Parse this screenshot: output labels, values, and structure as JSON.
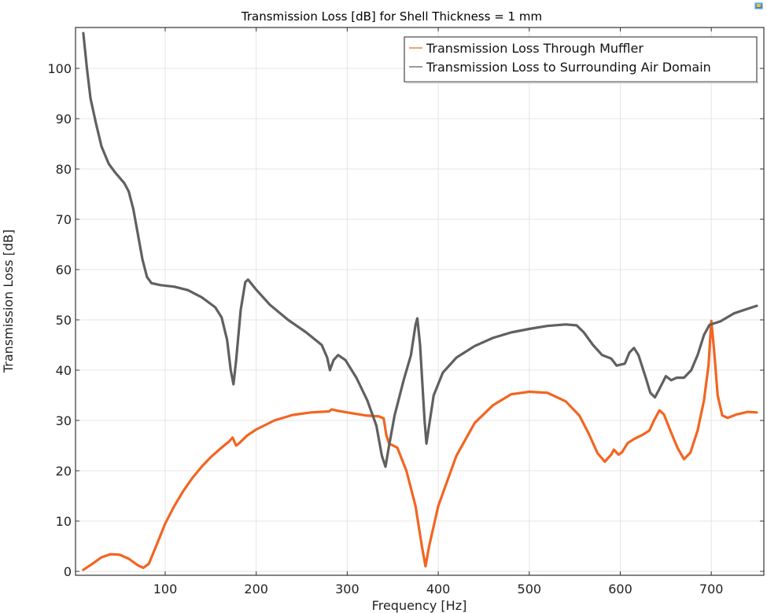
{
  "chart_data": {
    "type": "line",
    "title": "Transmission Loss [dB] for Shell Thickness = 1 mm",
    "xlabel": "Frequency [Hz]",
    "ylabel": "Transmission Loss [dB]",
    "xlim": [
      3,
      757
    ],
    "ylim": [
      -1,
      108
    ],
    "x_ticks": [
      100,
      200,
      300,
      400,
      500,
      600,
      700
    ],
    "y_ticks": [
      0,
      10,
      20,
      30,
      40,
      50,
      60,
      70,
      80,
      90,
      100
    ],
    "grid": true,
    "legend_position": "upper right",
    "series": [
      {
        "name": "Transmission Loss Through Muffler",
        "color": "#f26522",
        "points": [
          [
            10,
            0.3
          ],
          [
            20,
            1.5
          ],
          [
            30,
            2.8
          ],
          [
            40,
            3.4
          ],
          [
            50,
            3.3
          ],
          [
            60,
            2.5
          ],
          [
            70,
            1.2
          ],
          [
            76,
            0.7
          ],
          [
            82,
            1.5
          ],
          [
            90,
            5
          ],
          [
            100,
            9.5
          ],
          [
            110,
            13
          ],
          [
            120,
            16
          ],
          [
            130,
            18.6
          ],
          [
            140,
            20.8
          ],
          [
            150,
            22.7
          ],
          [
            160,
            24.3
          ],
          [
            170,
            25.8
          ],
          [
            174,
            26.6
          ],
          [
            178,
            25.0
          ],
          [
            182,
            25.6
          ],
          [
            190,
            27
          ],
          [
            200,
            28.2
          ],
          [
            220,
            30
          ],
          [
            240,
            31.1
          ],
          [
            260,
            31.6
          ],
          [
            280,
            31.8
          ],
          [
            283,
            32.2
          ],
          [
            290,
            31.9
          ],
          [
            300,
            31.6
          ],
          [
            320,
            31.0
          ],
          [
            335,
            30.8
          ],
          [
            340,
            30.4
          ],
          [
            343,
            27
          ],
          [
            346,
            25.4
          ],
          [
            355,
            24.6
          ],
          [
            365,
            20
          ],
          [
            375,
            13
          ],
          [
            382,
            5
          ],
          [
            386,
            1
          ],
          [
            390,
            5
          ],
          [
            400,
            13
          ],
          [
            420,
            23
          ],
          [
            440,
            29.5
          ],
          [
            460,
            33
          ],
          [
            480,
            35.2
          ],
          [
            500,
            35.7
          ],
          [
            520,
            35.5
          ],
          [
            540,
            33.8
          ],
          [
            555,
            31
          ],
          [
            565,
            27.5
          ],
          [
            575,
            23.5
          ],
          [
            583,
            21.8
          ],
          [
            590,
            23.2
          ],
          [
            593,
            24.2
          ],
          [
            598,
            23.2
          ],
          [
            602,
            23.7
          ],
          [
            608,
            25.5
          ],
          [
            615,
            26.3
          ],
          [
            625,
            27.2
          ],
          [
            632,
            28
          ],
          [
            637,
            30
          ],
          [
            643,
            32
          ],
          [
            648,
            31.2
          ],
          [
            655,
            28
          ],
          [
            663,
            24.5
          ],
          [
            670,
            22.3
          ],
          [
            677,
            23.6
          ],
          [
            685,
            28
          ],
          [
            692,
            34
          ],
          [
            697,
            41
          ],
          [
            700,
            49.8
          ],
          [
            703,
            44
          ],
          [
            707,
            35
          ],
          [
            712,
            31
          ],
          [
            718,
            30.5
          ],
          [
            728,
            31.2
          ],
          [
            740,
            31.7
          ],
          [
            750,
            31.6
          ]
        ]
      },
      {
        "name": "Transmission Loss to Surrounding Air Domain",
        "color": "#606060",
        "points": [
          [
            10,
            107
          ],
          [
            14,
            100
          ],
          [
            18,
            94
          ],
          [
            24,
            89
          ],
          [
            30,
            84.5
          ],
          [
            38,
            81
          ],
          [
            45,
            79.3
          ],
          [
            55,
            77.2
          ],
          [
            60,
            75.5
          ],
          [
            65,
            72
          ],
          [
            70,
            67
          ],
          [
            75,
            62
          ],
          [
            80,
            58.5
          ],
          [
            85,
            57.3
          ],
          [
            95,
            56.9
          ],
          [
            110,
            56.6
          ],
          [
            125,
            55.9
          ],
          [
            140,
            54.5
          ],
          [
            155,
            52.5
          ],
          [
            162,
            50.5
          ],
          [
            168,
            46
          ],
          [
            172,
            40
          ],
          [
            175,
            37.2
          ],
          [
            178,
            42
          ],
          [
            183,
            52
          ],
          [
            188,
            57.5
          ],
          [
            191,
            58
          ],
          [
            200,
            56
          ],
          [
            215,
            53
          ],
          [
            235,
            50
          ],
          [
            255,
            47.5
          ],
          [
            272,
            45
          ],
          [
            278,
            42.5
          ],
          [
            281,
            40
          ],
          [
            285,
            42
          ],
          [
            290,
            43
          ],
          [
            298,
            42
          ],
          [
            310,
            38.5
          ],
          [
            322,
            34
          ],
          [
            332,
            29
          ],
          [
            338,
            23
          ],
          [
            342,
            20.8
          ],
          [
            346,
            25
          ],
          [
            352,
            31
          ],
          [
            362,
            38
          ],
          [
            370,
            43
          ],
          [
            375,
            49
          ],
          [
            377,
            50.3
          ],
          [
            380,
            45
          ],
          [
            385,
            30
          ],
          [
            387,
            25.4
          ],
          [
            390,
            29
          ],
          [
            395,
            35
          ],
          [
            405,
            39.5
          ],
          [
            420,
            42.5
          ],
          [
            440,
            44.8
          ],
          [
            460,
            46.4
          ],
          [
            480,
            47.5
          ],
          [
            500,
            48.2
          ],
          [
            520,
            48.8
          ],
          [
            540,
            49.1
          ],
          [
            552,
            48.9
          ],
          [
            560,
            47.5
          ],
          [
            570,
            45
          ],
          [
            580,
            43
          ],
          [
            590,
            42.3
          ],
          [
            596,
            40.9
          ],
          [
            605,
            41.3
          ],
          [
            610,
            43.5
          ],
          [
            615,
            44.4
          ],
          [
            620,
            43
          ],
          [
            628,
            38.5
          ],
          [
            633,
            35.5
          ],
          [
            638,
            34.6
          ],
          [
            643,
            36.3
          ],
          [
            650,
            38.8
          ],
          [
            656,
            38
          ],
          [
            662,
            38.5
          ],
          [
            670,
            38.5
          ],
          [
            678,
            40
          ],
          [
            685,
            43
          ],
          [
            692,
            47
          ],
          [
            698,
            49
          ],
          [
            710,
            49.7
          ],
          [
            725,
            51.3
          ],
          [
            740,
            52.2
          ],
          [
            750,
            52.8
          ]
        ]
      }
    ]
  },
  "legend": {
    "items": [
      {
        "label": "Transmission Loss Through Muffler",
        "color": "#f4a07a"
      },
      {
        "label": "Transmission Loss to Surrounding Air Domain",
        "color": "#9a9a9a"
      }
    ]
  }
}
